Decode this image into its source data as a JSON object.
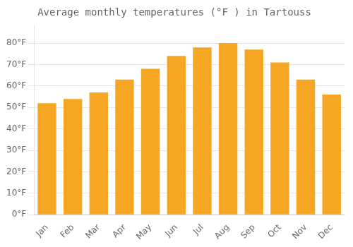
{
  "chart_data": {
    "type": "bar",
    "title": "Average monthly temperatures (°F ) in Tartouss",
    "categories": [
      "Jan",
      "Feb",
      "Mar",
      "Apr",
      "May",
      "Jun",
      "Jul",
      "Aug",
      "Sep",
      "Oct",
      "Nov",
      "Dec"
    ],
    "values": [
      52,
      54,
      57,
      63,
      68,
      74,
      78,
      80,
      77,
      71,
      63,
      56
    ],
    "color": "#F5A623",
    "ylim": [
      0,
      88
    ],
    "yticks": [
      {
        "value": 0,
        "label": "0°F"
      },
      {
        "value": 10,
        "label": "10°F"
      },
      {
        "value": 20,
        "label": "20°F"
      },
      {
        "value": 30,
        "label": "30°F"
      },
      {
        "value": 40,
        "label": "40°F"
      },
      {
        "value": 50,
        "label": "50°F"
      },
      {
        "value": 60,
        "label": "60°F"
      },
      {
        "value": 70,
        "label": "70°F"
      },
      {
        "value": 80,
        "label": "80°F"
      }
    ],
    "grid": true
  }
}
